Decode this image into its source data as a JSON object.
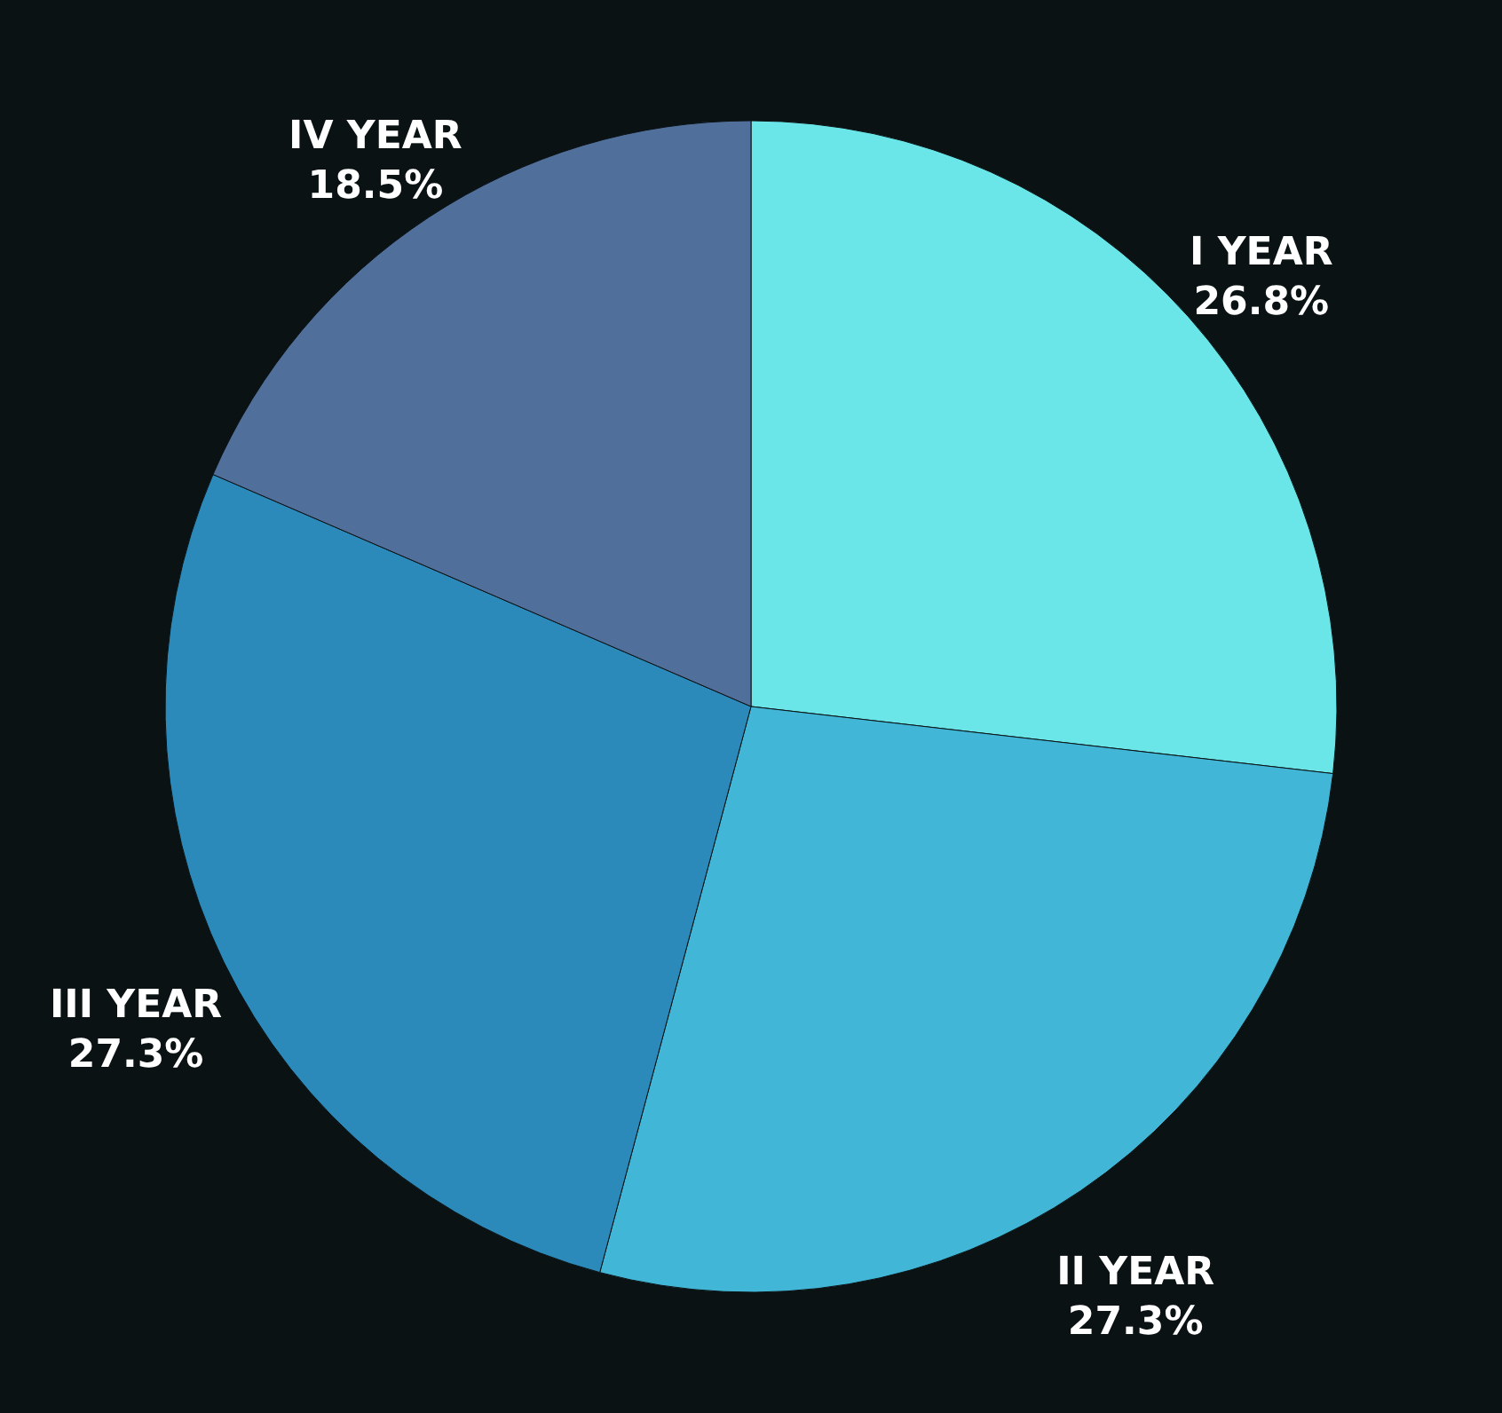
{
  "chart_data": {
    "type": "pie",
    "categories": [
      "I YEAR",
      "II YEAR",
      "III YEAR",
      "IV YEAR"
    ],
    "values": [
      26.8,
      27.3,
      27.3,
      18.5
    ],
    "value_labels": [
      "26.8%",
      "27.3%",
      "27.3%",
      "18.5%"
    ],
    "colors": [
      "#6ae5e8",
      "#42b6d6",
      "#2c8aba",
      "#50709b"
    ]
  }
}
